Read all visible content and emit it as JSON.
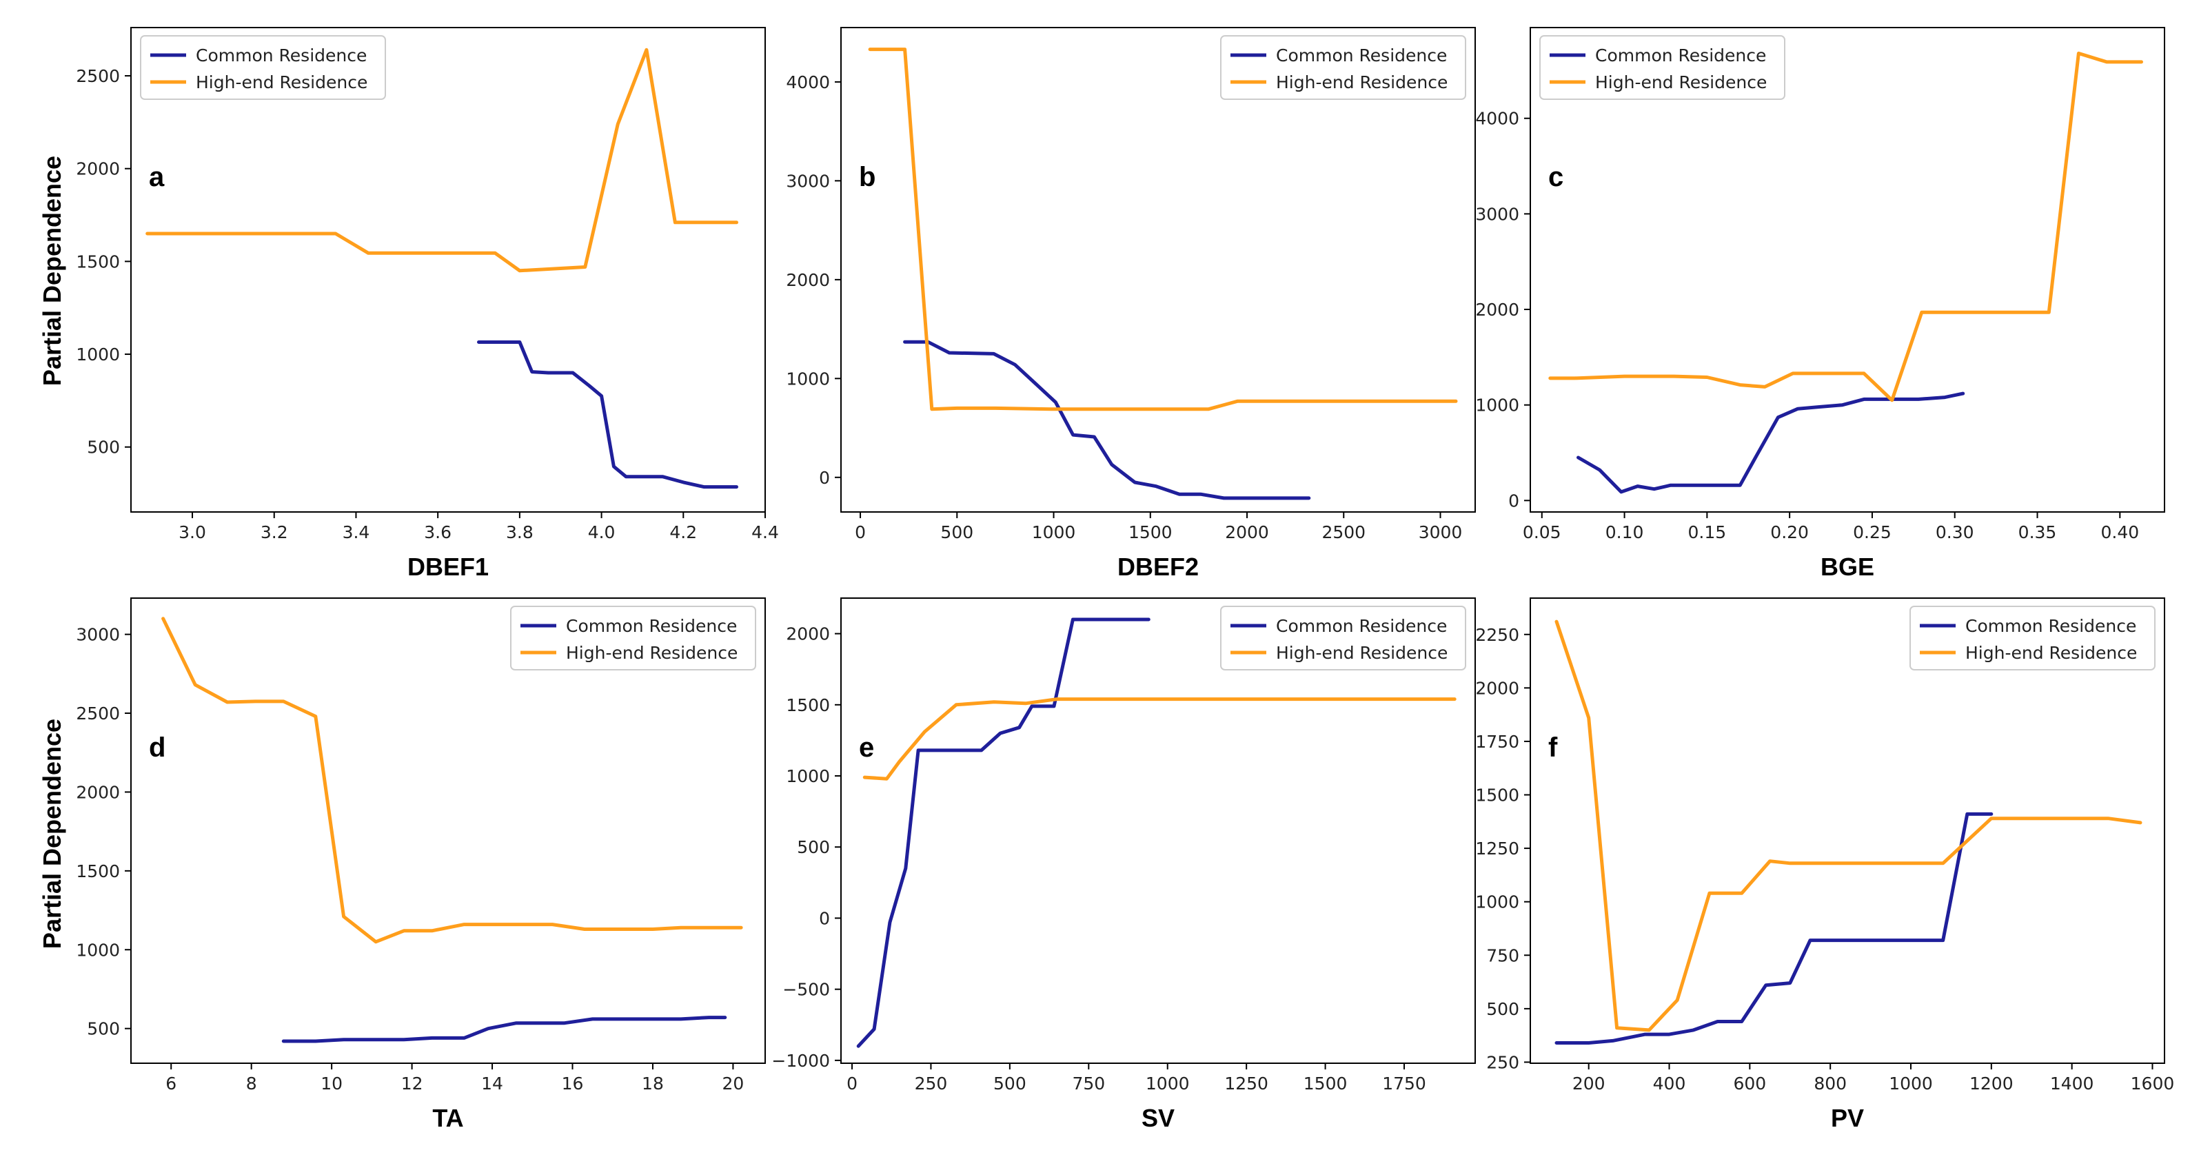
{
  "figure": {
    "ylabel": "Partial Dependence",
    "legend": [
      "Common Residence",
      "High-end Residence"
    ],
    "colors": {
      "common": "#1f1f9a",
      "highend": "#ff9e1b"
    }
  },
  "chart_data": [
    {
      "type": "line",
      "panel": "a",
      "xlabel": "DBEF1",
      "ylabel": "Partial Dependence",
      "xlim": [
        2.85,
        4.4
      ],
      "ylim": [
        150,
        2760
      ],
      "xticks": [
        3.0,
        3.2,
        3.4,
        3.6,
        3.8,
        4.0,
        4.2,
        4.4
      ],
      "xtick_labels": [
        "3.0",
        "3.2",
        "3.4",
        "3.6",
        "3.8",
        "4.0",
        "4.2",
        "4.4"
      ],
      "yticks": [
        500,
        1000,
        1500,
        2000,
        2500
      ],
      "ytick_labels": [
        "500",
        "1000",
        "1500",
        "2000",
        "2500"
      ],
      "legend_position": "top-left",
      "series": [
        {
          "name": "Common Residence",
          "color": "#1f1f9a",
          "x": [
            3.7,
            3.75,
            3.8,
            3.83,
            3.87,
            3.93,
            3.97,
            4.0,
            4.03,
            4.06,
            4.15,
            4.2,
            4.25,
            4.33
          ],
          "y": [
            1065,
            1065,
            1065,
            905,
            900,
            900,
            830,
            775,
            395,
            340,
            340,
            310,
            285,
            285
          ]
        },
        {
          "name": "High-end Residence",
          "color": "#ff9e1b",
          "x": [
            2.89,
            3.35,
            3.43,
            3.74,
            3.8,
            3.96,
            4.04,
            4.11,
            4.18,
            4.33
          ],
          "y": [
            1650,
            1650,
            1545,
            1545,
            1450,
            1470,
            2240,
            2640,
            1710,
            1710
          ]
        }
      ]
    },
    {
      "type": "line",
      "panel": "b",
      "xlabel": "DBEF2",
      "ylabel": "",
      "xlim": [
        -100,
        3180
      ],
      "ylim": [
        -350,
        4550
      ],
      "xticks": [
        0,
        500,
        1000,
        1500,
        2000,
        2500,
        3000
      ],
      "xtick_labels": [
        "0",
        "500",
        "1000",
        "1500",
        "2000",
        "2500",
        "3000"
      ],
      "yticks": [
        0,
        1000,
        2000,
        3000,
        4000
      ],
      "ytick_labels": [
        "0",
        "1000",
        "2000",
        "3000",
        "4000"
      ],
      "legend_position": "top-right",
      "series": [
        {
          "name": "Common Residence",
          "color": "#1f1f9a",
          "x": [
            230,
            350,
            460,
            690,
            800,
            900,
            1010,
            1100,
            1210,
            1300,
            1420,
            1530,
            1650,
            1760,
            1880,
            2000,
            2320
          ],
          "y": [
            1370,
            1370,
            1260,
            1250,
            1140,
            960,
            760,
            430,
            410,
            130,
            -50,
            -90,
            -170,
            -170,
            -210,
            -210,
            -210
          ]
        },
        {
          "name": "High-end Residence",
          "color": "#ff9e1b",
          "x": [
            50,
            230,
            370,
            500,
            700,
            1000,
            1500,
            1800,
            1950,
            2500,
            3080
          ],
          "y": [
            4330,
            4330,
            690,
            700,
            700,
            690,
            690,
            690,
            770,
            770,
            770
          ]
        }
      ]
    },
    {
      "type": "line",
      "panel": "c",
      "xlabel": "BGE",
      "ylabel": "",
      "xlim": [
        0.043,
        0.427
      ],
      "ylim": [
        -120,
        4950
      ],
      "xticks": [
        0.05,
        0.1,
        0.15,
        0.2,
        0.25,
        0.3,
        0.35,
        0.4
      ],
      "xtick_labels": [
        "0.05",
        "0.10",
        "0.15",
        "0.20",
        "0.25",
        "0.30",
        "0.35",
        "0.40"
      ],
      "yticks": [
        0,
        1000,
        2000,
        3000,
        4000
      ],
      "ytick_labels": [
        "0",
        "1000",
        "2000",
        "3000",
        "4000"
      ],
      "legend_position": "top-left",
      "series": [
        {
          "name": "Common Residence",
          "color": "#1f1f9a",
          "x": [
            0.072,
            0.085,
            0.098,
            0.108,
            0.118,
            0.128,
            0.14,
            0.155,
            0.17,
            0.18,
            0.193,
            0.205,
            0.218,
            0.232,
            0.245,
            0.262,
            0.278,
            0.294,
            0.305
          ],
          "y": [
            450,
            320,
            90,
            150,
            120,
            160,
            160,
            160,
            160,
            470,
            870,
            960,
            980,
            1000,
            1060,
            1060,
            1060,
            1080,
            1120
          ]
        },
        {
          "name": "High-end Residence",
          "color": "#ff9e1b",
          "x": [
            0.055,
            0.07,
            0.1,
            0.13,
            0.15,
            0.17,
            0.185,
            0.202,
            0.225,
            0.245,
            0.262,
            0.28,
            0.3,
            0.33,
            0.357,
            0.375,
            0.392,
            0.413
          ],
          "y": [
            1280,
            1280,
            1300,
            1300,
            1290,
            1210,
            1190,
            1330,
            1330,
            1330,
            1050,
            1970,
            1970,
            1970,
            1970,
            4680,
            4590,
            4590
          ]
        }
      ]
    },
    {
      "type": "line",
      "panel": "d",
      "xlabel": "TA",
      "ylabel": "Partial Dependence",
      "xlim": [
        5.0,
        20.8
      ],
      "ylim": [
        280,
        3230
      ],
      "xticks": [
        6,
        8,
        10,
        12,
        14,
        16,
        18,
        20
      ],
      "xtick_labels": [
        "6",
        "8",
        "10",
        "12",
        "14",
        "16",
        "18",
        "20"
      ],
      "yticks": [
        500,
        1000,
        1500,
        2000,
        2500,
        3000
      ],
      "ytick_labels": [
        "500",
        "1000",
        "1500",
        "2000",
        "2500",
        "3000"
      ],
      "legend_position": "top-right",
      "series": [
        {
          "name": "Common Residence",
          "color": "#1f1f9a",
          "x": [
            8.8,
            9.6,
            10.3,
            11.0,
            11.8,
            12.5,
            13.3,
            13.9,
            14.6,
            15.4,
            15.8,
            16.5,
            17.3,
            18.0,
            18.7,
            19.4,
            19.8
          ],
          "y": [
            420,
            420,
            430,
            430,
            430,
            440,
            440,
            500,
            535,
            535,
            535,
            560,
            560,
            560,
            560,
            570,
            570
          ]
        },
        {
          "name": "High-end Residence",
          "color": "#ff9e1b",
          "x": [
            5.8,
            6.6,
            7.4,
            8.1,
            8.8,
            9.6,
            10.3,
            11.1,
            11.8,
            12.5,
            13.3,
            14.0,
            15.5,
            16.3,
            17.0,
            18.0,
            18.7,
            20.2
          ],
          "y": [
            3100,
            2680,
            2570,
            2575,
            2575,
            2480,
            1210,
            1050,
            1120,
            1120,
            1160,
            1160,
            1160,
            1130,
            1130,
            1130,
            1140,
            1140
          ]
        }
      ]
    },
    {
      "type": "line",
      "panel": "e",
      "xlabel": "SV",
      "ylabel": "",
      "xlim": [
        -35,
        1975
      ],
      "ylim": [
        -1020,
        2250
      ],
      "xticks": [
        0,
        250,
        500,
        750,
        1000,
        1250,
        1500,
        1750
      ],
      "xtick_labels": [
        "0",
        "250",
        "500",
        "750",
        "1000",
        "1250",
        "1500",
        "1750"
      ],
      "yticks": [
        -1000,
        -500,
        0,
        500,
        1000,
        1500,
        2000
      ],
      "ytick_labels": [
        "−1000",
        "−500",
        "0",
        "500",
        "1000",
        "1500",
        "2000"
      ],
      "legend_position": "top-right",
      "series": [
        {
          "name": "Common Residence",
          "color": "#1f1f9a",
          "x": [
            20,
            70,
            120,
            170,
            210,
            340,
            410,
            470,
            530,
            570,
            640,
            700,
            820,
            940
          ],
          "y": [
            -900,
            -780,
            -30,
            350,
            1180,
            1180,
            1180,
            1300,
            1340,
            1490,
            1490,
            2100,
            2100,
            2100
          ]
        },
        {
          "name": "High-end Residence",
          "color": "#ff9e1b",
          "x": [
            40,
            110,
            150,
            230,
            330,
            450,
            550,
            650,
            750,
            1000,
            1500,
            1910
          ],
          "y": [
            990,
            980,
            1100,
            1310,
            1500,
            1520,
            1510,
            1540,
            1540,
            1540,
            1540,
            1540
          ]
        }
      ]
    },
    {
      "type": "line",
      "panel": "f",
      "xlabel": "PV",
      "ylabel": "",
      "xlim": [
        55,
        1630
      ],
      "ylim": [
        245,
        2420
      ],
      "xticks": [
        200,
        400,
        600,
        800,
        1000,
        1200,
        1400,
        1600
      ],
      "xtick_labels": [
        "200",
        "400",
        "600",
        "800",
        "1000",
        "1200",
        "1400",
        "1600"
      ],
      "yticks": [
        250,
        500,
        750,
        1000,
        1250,
        1500,
        1750,
        2000,
        2250
      ],
      "ytick_labels": [
        "250",
        "500",
        "750",
        "1000",
        "1250",
        "1500",
        "1750",
        "2000",
        "2250"
      ],
      "legend_position": "top-right",
      "series": [
        {
          "name": "Common Residence",
          "color": "#1f1f9a",
          "x": [
            120,
            200,
            260,
            340,
            400,
            460,
            520,
            580,
            640,
            700,
            750,
            800,
            900,
            1000,
            1080,
            1140,
            1200
          ],
          "y": [
            340,
            340,
            350,
            380,
            380,
            400,
            440,
            440,
            610,
            620,
            820,
            820,
            820,
            820,
            820,
            1410,
            1410
          ]
        },
        {
          "name": "High-end Residence",
          "color": "#ff9e1b",
          "x": [
            120,
            200,
            270,
            350,
            420,
            500,
            580,
            650,
            700,
            800,
            1000,
            1080,
            1200,
            1350,
            1490,
            1570
          ],
          "y": [
            2310,
            1860,
            410,
            400,
            540,
            1040,
            1040,
            1190,
            1180,
            1180,
            1180,
            1180,
            1390,
            1390,
            1390,
            1370
          ]
        }
      ]
    }
  ]
}
